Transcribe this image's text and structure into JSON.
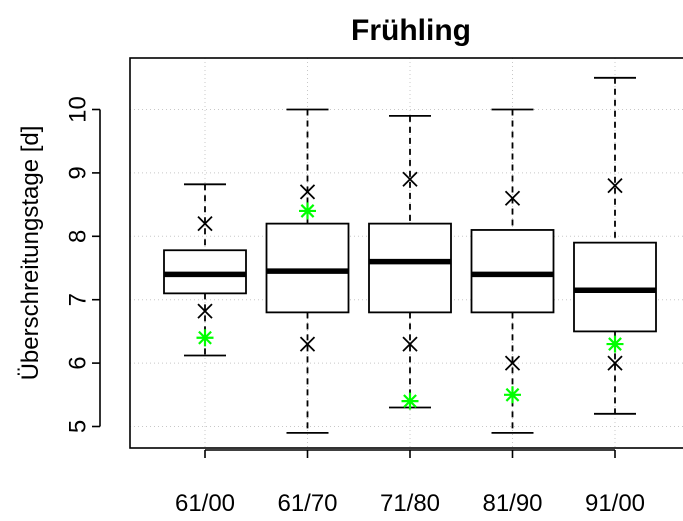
{
  "chart_data": {
    "type": "boxplot",
    "title": "Frühling",
    "xlabel": "",
    "ylabel": "Überschreitungstage [d]",
    "ylim": [
      4.7,
      10.6
    ],
    "yticks": [
      5,
      6,
      7,
      8,
      9,
      10
    ],
    "grid": true,
    "categories": [
      "61/00",
      "61/70",
      "71/80",
      "81/90",
      "91/00"
    ],
    "boxes": [
      {
        "whisker_low": 6.12,
        "q1": 7.1,
        "median": 7.4,
        "q3": 7.78,
        "whisker_high": 8.82
      },
      {
        "whisker_low": 4.9,
        "q1": 6.8,
        "median": 7.45,
        "q3": 8.2,
        "whisker_high": 10.0
      },
      {
        "whisker_low": 5.3,
        "q1": 6.8,
        "median": 7.6,
        "q3": 8.2,
        "whisker_high": 9.9
      },
      {
        "whisker_low": 4.9,
        "q1": 6.8,
        "median": 7.4,
        "q3": 8.1,
        "whisker_high": 10.0
      },
      {
        "whisker_low": 5.2,
        "q1": 6.5,
        "median": 7.15,
        "q3": 7.9,
        "whisker_high": 10.5
      }
    ],
    "cross_markers": [
      {
        "values": [
          8.2,
          6.82
        ]
      },
      {
        "values": [
          8.7,
          6.3
        ]
      },
      {
        "values": [
          8.9,
          6.3
        ]
      },
      {
        "values": [
          8.6,
          6.0
        ]
      },
      {
        "values": [
          8.8,
          6.0
        ]
      }
    ],
    "star_markers": [
      6.4,
      8.4,
      5.4,
      5.5,
      6.3
    ],
    "colors": {
      "box": "#000000",
      "cross": "#000000",
      "star": "#00ff00",
      "grid": "#c8c8c8"
    }
  }
}
